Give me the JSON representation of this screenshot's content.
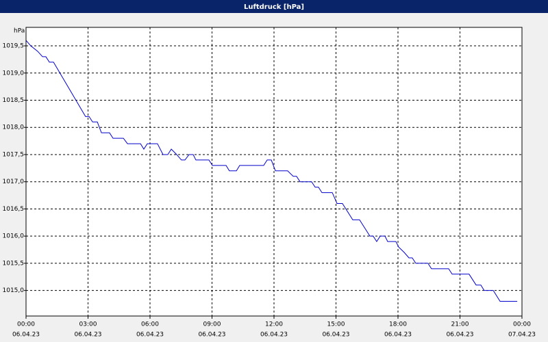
{
  "chart_data": {
    "type": "line",
    "title": "Luftdruck [hPa]",
    "y_unit": "hPa",
    "x": [
      0,
      0.23,
      0.56,
      0.8,
      0.96,
      1.13,
      1.33,
      2.88,
      3.05,
      3.22,
      3.45,
      3.65,
      4.04,
      4.21,
      4.71,
      4.91,
      5.54,
      5.7,
      5.87,
      6.36,
      6.63,
      6.86,
      7.03,
      7.29,
      7.52,
      7.69,
      7.89,
      8.09,
      8.22,
      8.85,
      9.02,
      9.68,
      9.84,
      10.18,
      10.34,
      11.5,
      11.67,
      11.87,
      12.07,
      12.66,
      12.93,
      13.09,
      13.26,
      13.82,
      13.99,
      14.15,
      14.32,
      14.82,
      15.05,
      15.31,
      15.81,
      16.14,
      16.64,
      16.8,
      16.97,
      17.14,
      17.37,
      17.5,
      17.9,
      18.03,
      18.3,
      18.53,
      18.69,
      18.86,
      19.45,
      19.62,
      20.45,
      20.62,
      21.44,
      21.78,
      22.01,
      22.17,
      22.61,
      22.94,
      23.77
    ],
    "series": [
      {
        "name": "Luftdruck",
        "color": "#0000cc",
        "values": [
          1019.6,
          1019.5,
          1019.4,
          1019.3,
          1019.3,
          1019.2,
          1019.2,
          1018.2,
          1018.2,
          1018.1,
          1018.1,
          1017.9,
          1017.9,
          1017.8,
          1017.8,
          1017.7,
          1017.7,
          1017.6,
          1017.7,
          1017.7,
          1017.5,
          1017.5,
          1017.6,
          1017.5,
          1017.4,
          1017.4,
          1017.5,
          1017.5,
          1017.4,
          1017.4,
          1017.3,
          1017.3,
          1017.2,
          1017.2,
          1017.3,
          1017.3,
          1017.4,
          1017.4,
          1017.2,
          1017.2,
          1017.1,
          1017.1,
          1017.0,
          1017.0,
          1016.9,
          1016.9,
          1016.8,
          1016.8,
          1016.6,
          1016.6,
          1016.3,
          1016.3,
          1016.0,
          1016.0,
          1015.9,
          1016.0,
          1016.0,
          1015.9,
          1015.9,
          1015.8,
          1015.7,
          1015.6,
          1015.6,
          1015.5,
          1015.5,
          1015.4,
          1015.4,
          1015.3,
          1015.3,
          1015.1,
          1015.1,
          1015.0,
          1015.0,
          1014.8,
          1014.8
        ]
      }
    ],
    "xlim": [
      0,
      24
    ],
    "xticks": [
      {
        "value": 0,
        "label": [
          "00:00",
          "06.04.23"
        ]
      },
      {
        "value": 3,
        "label": [
          "03:00",
          "06.04.23"
        ]
      },
      {
        "value": 6,
        "label": [
          "06:00",
          "06.04.23"
        ]
      },
      {
        "value": 9,
        "label": [
          "09:00",
          "06.04.23"
        ]
      },
      {
        "value": 12,
        "label": [
          "12:00",
          "06.04.23"
        ]
      },
      {
        "value": 15,
        "label": [
          "15:00",
          "06.04.23"
        ]
      },
      {
        "value": 18,
        "label": [
          "18:00",
          "06.04.23"
        ]
      },
      {
        "value": 21,
        "label": [
          "21:00",
          "06.04.23"
        ]
      },
      {
        "value": 24,
        "label": [
          "00:00",
          "07.04.23"
        ]
      }
    ],
    "ylim": [
      1014.53,
      1019.84
    ],
    "yticks": [
      {
        "value": 1015.0,
        "label": "1015,0"
      },
      {
        "value": 1015.5,
        "label": "1015,5"
      },
      {
        "value": 1016.0,
        "label": "1016,0"
      },
      {
        "value": 1016.5,
        "label": "1016,5"
      },
      {
        "value": 1017.0,
        "label": "1017,0"
      },
      {
        "value": 1017.5,
        "label": "1017,5"
      },
      {
        "value": 1018.0,
        "label": "1018,0"
      },
      {
        "value": 1018.5,
        "label": "1018,5"
      },
      {
        "value": 1019.0,
        "label": "1019,0"
      },
      {
        "value": 1019.5,
        "label": "1019,5"
      }
    ],
    "grid": true
  }
}
